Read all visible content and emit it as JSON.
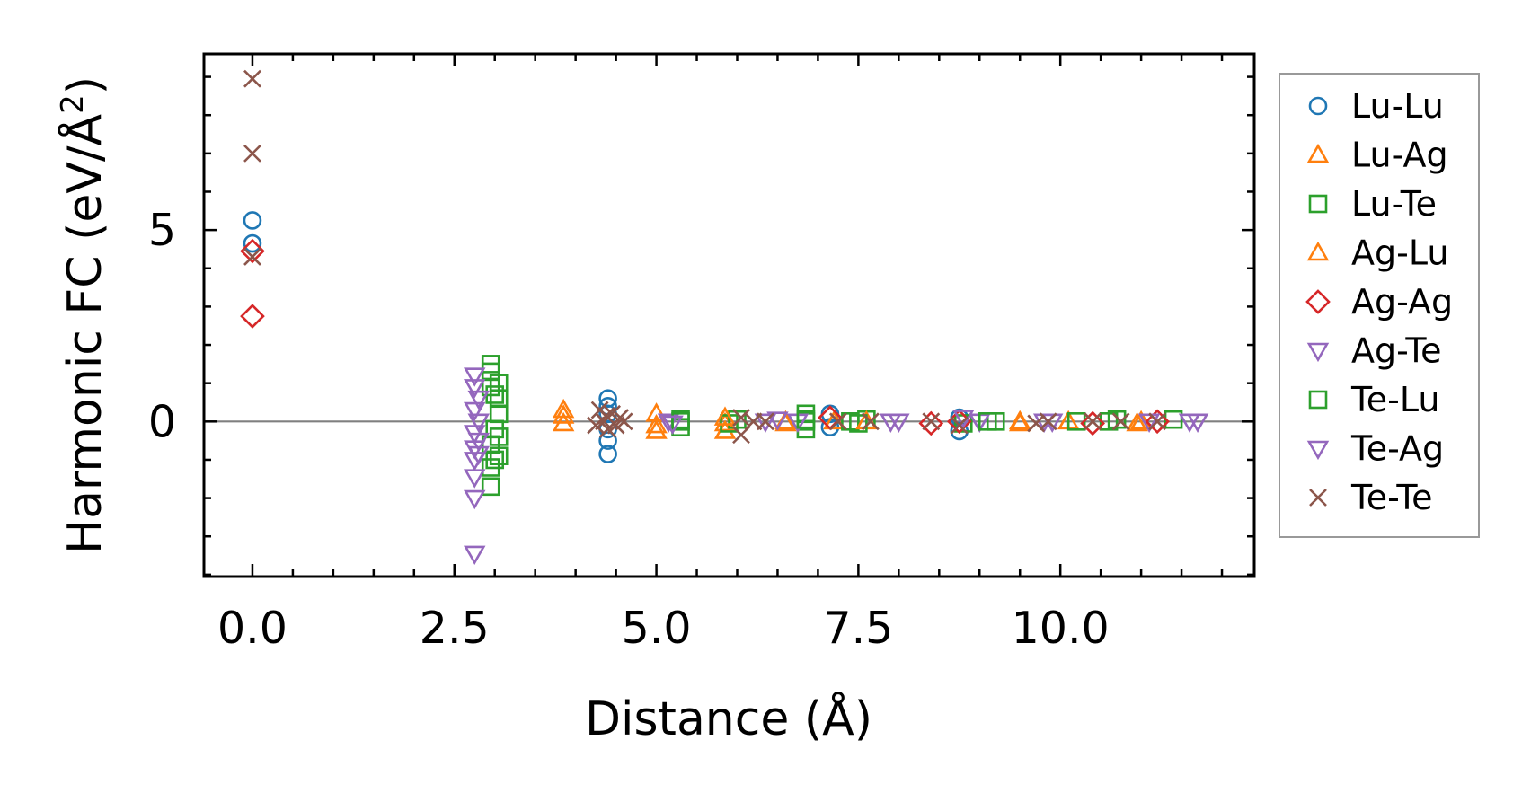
{
  "chart_data": {
    "type": "scatter",
    "title": "",
    "xlabel": "Distance (Å)",
    "ylabel_main": "Harmonic FC (eV/Å",
    "ylabel_sup": "2",
    "ylabel_end": ")",
    "xlim": [
      -0.6,
      12.4
    ],
    "ylim": [
      -4.05,
      9.6
    ],
    "x_ticks": [
      0.0,
      2.5,
      5.0,
      7.5,
      10.0
    ],
    "x_tick_labels": [
      "0.0",
      "2.5",
      "5.0",
      "7.5",
      "10.0"
    ],
    "y_ticks": [
      0,
      5
    ],
    "y_tick_labels": [
      "0",
      "5"
    ],
    "zero_line": true,
    "legend_position": "right, outside",
    "series": [
      {
        "name": "Lu-Lu",
        "marker": "circle",
        "color": "#1f77b4",
        "points": [
          [
            0,
            5.25
          ],
          [
            0,
            4.65
          ],
          [
            4.4,
            0.6
          ],
          [
            4.4,
            0.4
          ],
          [
            4.4,
            0.2
          ],
          [
            4.4,
            -0.2
          ],
          [
            4.4,
            -0.5
          ],
          [
            4.4,
            -0.85
          ],
          [
            7.15,
            0.2
          ],
          [
            7.15,
            -0.15
          ],
          [
            8.75,
            -0.25
          ],
          [
            8.75,
            0.1
          ]
        ]
      },
      {
        "name": "Lu-Ag",
        "marker": "triangle-up",
        "color": "#ff7f0e",
        "points": [
          [
            3.85,
            0.3
          ],
          [
            3.85,
            -0.05
          ],
          [
            5.0,
            0.2
          ],
          [
            5.0,
            -0.25
          ],
          [
            5.85,
            -0.05
          ],
          [
            5.85,
            -0.25
          ],
          [
            6.6,
            -0.05
          ],
          [
            7.2,
            0.0
          ],
          [
            9.5,
            -0.05
          ],
          [
            10.1,
            0.0
          ],
          [
            10.95,
            -0.05
          ]
        ]
      },
      {
        "name": "Lu-Te",
        "marker": "square",
        "color": "#2ca02c",
        "points": [
          [
            2.95,
            1.5
          ],
          [
            2.95,
            1.3
          ],
          [
            2.95,
            0.9
          ],
          [
            2.95,
            -0.6
          ],
          [
            2.95,
            -1.2
          ],
          [
            2.95,
            -1.7
          ],
          [
            3.05,
            1.0
          ],
          [
            3.05,
            0.6
          ],
          [
            3.05,
            0.2
          ],
          [
            3.05,
            -0.4
          ],
          [
            3.05,
            -0.9
          ],
          [
            5.3,
            0.05
          ],
          [
            5.3,
            -0.15
          ],
          [
            5.9,
            -0.05
          ],
          [
            6.0,
            0.05
          ],
          [
            6.85,
            0.2
          ],
          [
            6.85,
            0.0
          ],
          [
            6.85,
            -0.2
          ],
          [
            7.4,
            0.0
          ],
          [
            7.6,
            0.05
          ],
          [
            8.8,
            -0.05
          ],
          [
            9.2,
            0.0
          ],
          [
            10.2,
            0.0
          ],
          [
            10.6,
            0.0
          ],
          [
            11.4,
            0.05
          ]
        ]
      },
      {
        "name": "Ag-Lu",
        "marker": "triangle-up",
        "color": "#ff7f0e",
        "points": [
          [
            3.85,
            0.15
          ],
          [
            5.0,
            -0.1
          ],
          [
            5.85,
            0.1
          ],
          [
            6.6,
            0.0
          ],
          [
            7.6,
            0.0
          ],
          [
            9.5,
            0.0
          ],
          [
            11.0,
            0.0
          ]
        ]
      },
      {
        "name": "Ag-Ag",
        "marker": "diamond",
        "color": "#d62728",
        "points": [
          [
            0,
            4.45
          ],
          [
            0,
            2.75
          ],
          [
            7.15,
            0.1
          ],
          [
            8.4,
            -0.05
          ],
          [
            8.75,
            0.0
          ],
          [
            10.4,
            -0.05
          ],
          [
            11.2,
            0.0
          ]
        ]
      },
      {
        "name": "Ag-Te",
        "marker": "triangle-down",
        "color": "#9467bd",
        "points": [
          [
            2.75,
            1.2
          ],
          [
            2.75,
            0.9
          ],
          [
            2.75,
            0.3
          ],
          [
            2.75,
            -0.3
          ],
          [
            2.75,
            -0.7
          ],
          [
            2.75,
            -1.0
          ],
          [
            2.75,
            -1.45
          ],
          [
            2.75,
            -2.0
          ],
          [
            2.75,
            -3.45
          ],
          [
            2.8,
            0.0
          ],
          [
            5.15,
            0.0
          ],
          [
            6.35,
            0.0
          ],
          [
            6.75,
            0.0
          ],
          [
            7.9,
            0.0
          ],
          [
            8.8,
            0.1
          ],
          [
            9.0,
            0.0
          ],
          [
            9.9,
            0.0
          ],
          [
            11.1,
            0.0
          ],
          [
            11.7,
            0.0
          ]
        ]
      },
      {
        "name": "Te-Lu",
        "marker": "square",
        "color": "#2ca02c",
        "points": [
          [
            3.0,
            0.7
          ],
          [
            3.0,
            -0.2
          ],
          [
            3.0,
            -1.0
          ],
          [
            5.3,
            0.0
          ],
          [
            6.85,
            0.05
          ],
          [
            7.5,
            -0.05
          ],
          [
            9.1,
            0.0
          ],
          [
            10.7,
            0.05
          ]
        ]
      },
      {
        "name": "Te-Ag",
        "marker": "triangle-down",
        "color": "#9467bd",
        "points": [
          [
            2.8,
            0.6
          ],
          [
            2.8,
            -0.5
          ],
          [
            2.8,
            -0.85
          ],
          [
            5.2,
            -0.05
          ],
          [
            6.5,
            0.05
          ],
          [
            8.0,
            0.0
          ],
          [
            9.8,
            0.0
          ],
          [
            11.6,
            0.0
          ]
        ]
      },
      {
        "name": "Te-Te",
        "marker": "cross",
        "color": "#8c564b",
        "points": [
          [
            0,
            8.95
          ],
          [
            0,
            7.0
          ],
          [
            0,
            4.3
          ],
          [
            4.3,
            0.3
          ],
          [
            4.35,
            0.0
          ],
          [
            4.4,
            -0.2
          ],
          [
            4.45,
            0.2
          ],
          [
            4.5,
            -0.1
          ],
          [
            4.55,
            0.1
          ],
          [
            4.6,
            0.0
          ],
          [
            4.25,
            -0.1
          ],
          [
            4.38,
            0.15
          ],
          [
            6.05,
            0.1
          ],
          [
            6.05,
            -0.35
          ],
          [
            6.2,
            0.0
          ],
          [
            6.35,
            0.0
          ],
          [
            7.25,
            0.0
          ],
          [
            7.65,
            0.0
          ],
          [
            8.4,
            0.0
          ],
          [
            8.75,
            -0.1
          ],
          [
            9.7,
            -0.05
          ],
          [
            9.85,
            0.0
          ],
          [
            10.4,
            0.0
          ],
          [
            10.75,
            0.0
          ],
          [
            11.2,
            0.0
          ]
        ]
      }
    ]
  }
}
